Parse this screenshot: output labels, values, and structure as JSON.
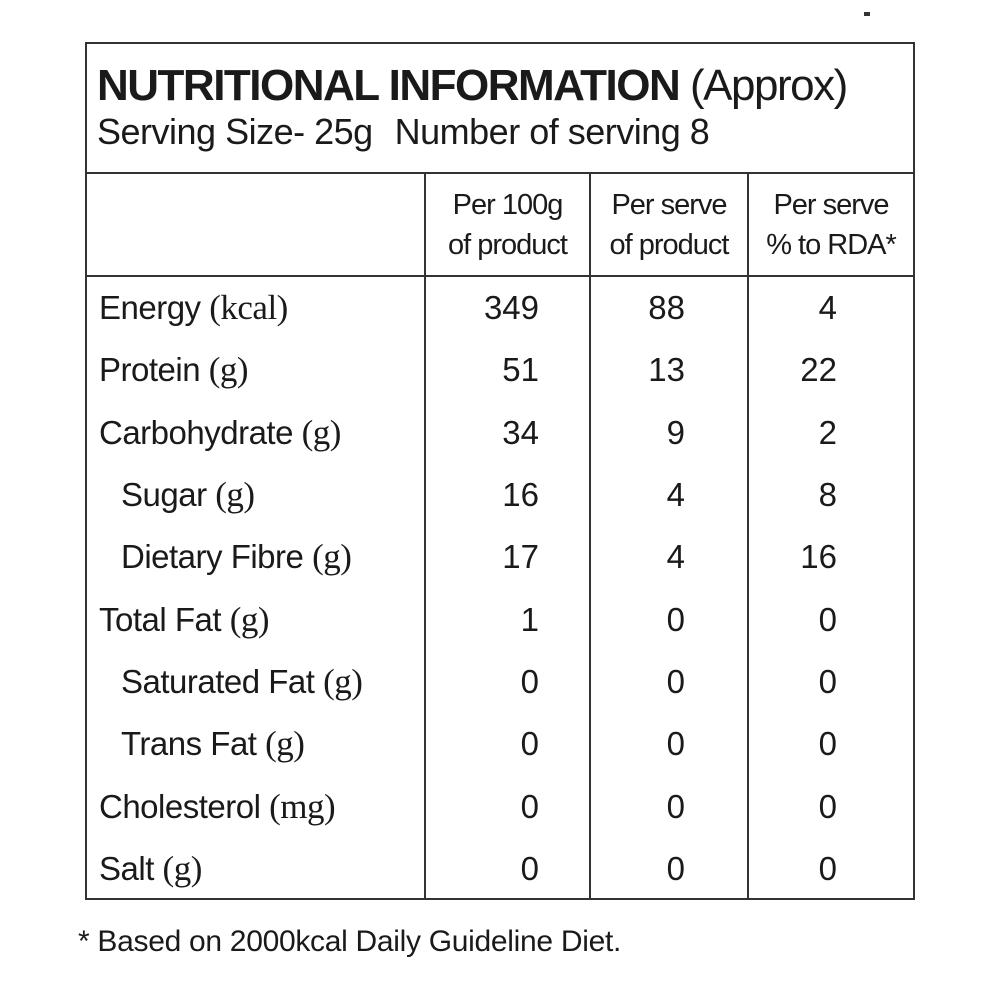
{
  "title": {
    "main": "NUTRITIONAL INFORMATION",
    "note": "(Approx)"
  },
  "serving": {
    "size": "Serving Size- 25g",
    "count": "Number of serving 8"
  },
  "table": {
    "columns": [
      [
        "Per 100g",
        "of product"
      ],
      [
        "Per serve",
        "of product"
      ],
      [
        "Per serve",
        "% to RDA*"
      ]
    ],
    "rows": [
      {
        "name": "Energy",
        "unit": "(kcal)",
        "values": [
          349,
          88,
          4
        ]
      },
      {
        "name": "Protein",
        "unit": "(g)",
        "values": [
          51,
          13,
          22
        ]
      },
      {
        "name": "Carbohydrate",
        "unit": "(g)",
        "values": [
          34,
          9,
          2
        ]
      },
      {
        "name": "Sugar",
        "unit": "(g)",
        "values": [
          16,
          4,
          8
        ]
      },
      {
        "name": "Dietary Fibre",
        "unit": "(g)",
        "values": [
          17,
          4,
          16
        ]
      },
      {
        "name": "Total Fat",
        "unit": "(g)",
        "values": [
          1,
          0,
          0
        ]
      },
      {
        "name": "Saturated Fat",
        "unit": "(g)",
        "values": [
          0,
          0,
          0
        ]
      },
      {
        "name": "Trans Fat",
        "unit": "(g)",
        "values": [
          0,
          0,
          0
        ]
      },
      {
        "name": "Cholesterol",
        "unit": "(mg)",
        "values": [
          0,
          0,
          0
        ]
      },
      {
        "name": "Salt",
        "unit": "(g)",
        "values": [
          0,
          0,
          0
        ]
      }
    ]
  },
  "footnote": "* Based on 2000kcal Daily Guideline Diet."
}
